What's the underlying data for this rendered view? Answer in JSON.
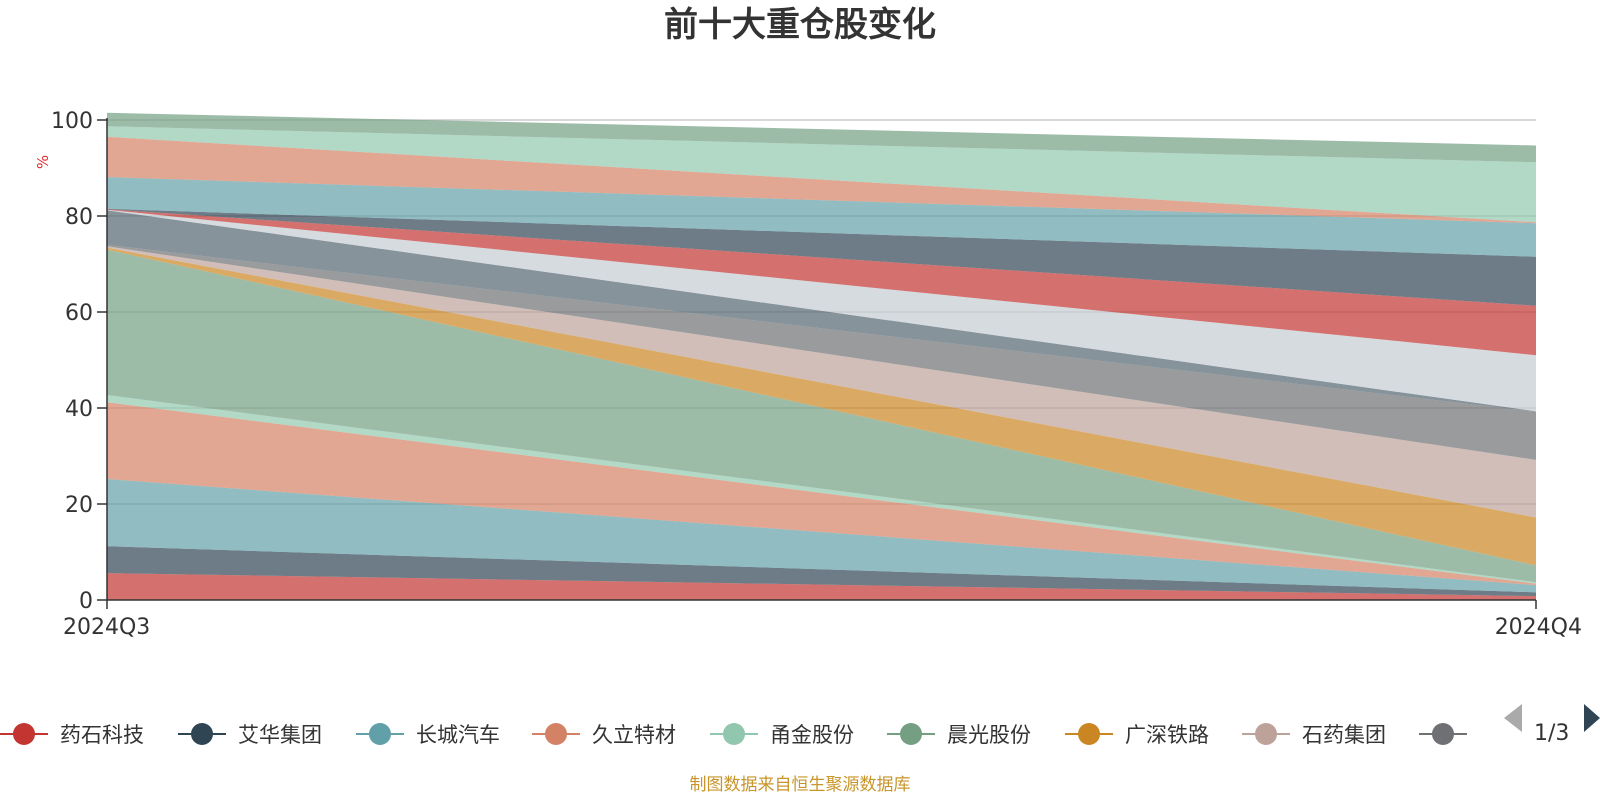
{
  "chart_data": {
    "type": "area",
    "title": "前十大重仓股变化",
    "ylabel": "%",
    "ylim": [
      0,
      100
    ],
    "yticks": [
      0,
      20,
      40,
      60,
      80,
      100
    ],
    "categories": [
      "2024Q3",
      "2024Q4"
    ],
    "grid": true,
    "series": [
      {
        "name": "药石科技",
        "values": [
          5.6,
          0.8
        ],
        "color": "#c23531"
      },
      {
        "name": "艾华集团",
        "values": [
          5.6,
          0.8
        ],
        "color": "#2f4554"
      },
      {
        "name": "长城汽车",
        "values": [
          14.0,
          1.5
        ],
        "color": "#61a0a8"
      },
      {
        "name": "久立特材",
        "values": [
          16.0,
          0.3
        ],
        "color": "#d48265"
      },
      {
        "name": "甬金股份",
        "values": [
          1.5,
          0.3
        ],
        "color": "#91c7ae"
      },
      {
        "name": "晨光股份",
        "values": [
          30.3,
          3.5
        ],
        "color": "#749f83"
      },
      {
        "name": "广深铁路",
        "values": [
          0.4,
          10.0
        ],
        "color": "#ca8622"
      },
      {
        "name": "石药集团",
        "values": [
          0.3,
          12.0
        ],
        "color": "#bda29a"
      },
      {
        "name": "",
        "values": [
          0.3,
          10.0
        ],
        "color": "#6e7074"
      },
      {
        "name": "",
        "values": [
          7.2,
          0.1
        ],
        "color": "#546570"
      },
      {
        "name": "",
        "values": [
          0.1,
          11.7
        ],
        "color": "#c4ccd3"
      },
      {
        "name": "",
        "values": [
          0.1,
          10.3
        ],
        "color": "#c23531"
      },
      {
        "name": "",
        "values": [
          0.1,
          10.2
        ],
        "color": "#2f4554"
      },
      {
        "name": "",
        "values": [
          6.6,
          7.0
        ],
        "color": "#61a0a8"
      },
      {
        "name": "",
        "values": [
          8.4,
          0.2
        ],
        "color": "#d48265"
      },
      {
        "name": "",
        "values": [
          2.2,
          12.5
        ],
        "color": "#91c7ae"
      },
      {
        "name": "",
        "values": [
          2.8,
          3.5
        ],
        "color": "#749f83"
      }
    ]
  },
  "legend": {
    "visible_items": [
      "药石科技",
      "艾华集团",
      "长城汽车",
      "久立特材",
      "甬金股份",
      "晨光股份",
      "广深铁路",
      "石药集团",
      ""
    ],
    "page_indicator": "1/3"
  },
  "source_note": "制图数据来自恒生聚源数据库"
}
